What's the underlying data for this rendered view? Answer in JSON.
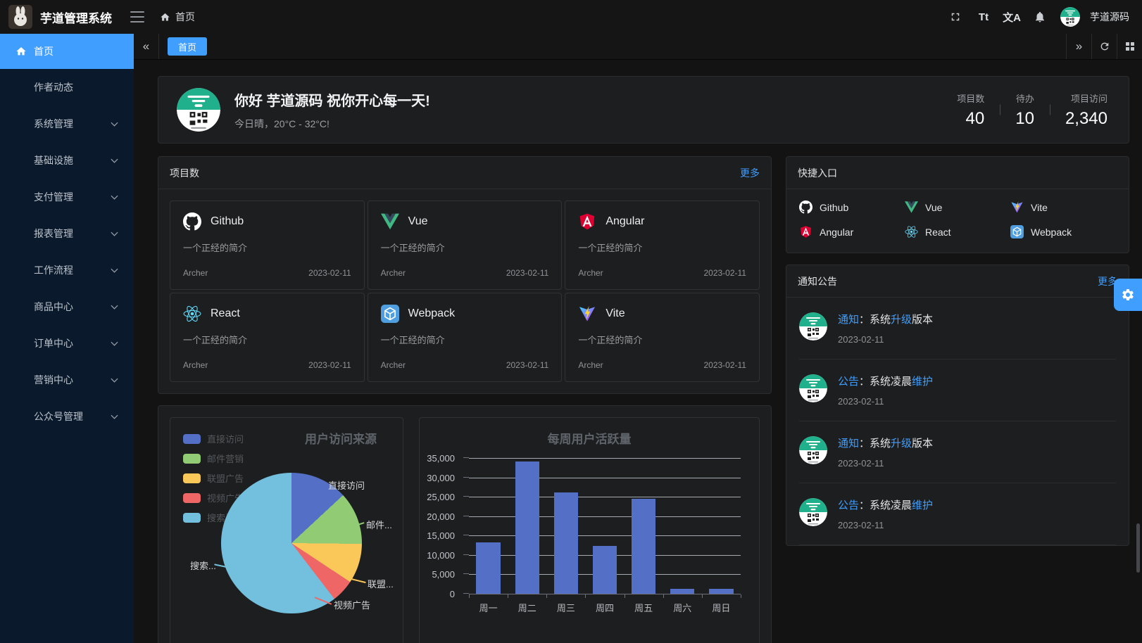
{
  "header": {
    "title": "芋道管理系统",
    "breadcrumb": "首页",
    "font_size_label": "Tt",
    "locale_label": "文A",
    "username": "芋道源码"
  },
  "tabbar": {
    "collapse_left": "«",
    "collapse_right": "»",
    "tabs": [
      {
        "label": "首页",
        "active": true
      }
    ]
  },
  "sidebar": {
    "items": [
      {
        "label": "首页",
        "icon": "home",
        "active": true,
        "chevron": false
      },
      {
        "label": "作者动态",
        "chevron": false
      },
      {
        "label": "系统管理",
        "chevron": true
      },
      {
        "label": "基础设施",
        "chevron": true
      },
      {
        "label": "支付管理",
        "chevron": true
      },
      {
        "label": "报表管理",
        "chevron": true
      },
      {
        "label": "工作流程",
        "chevron": true
      },
      {
        "label": "商品中心",
        "chevron": true
      },
      {
        "label": "订单中心",
        "chevron": true
      },
      {
        "label": "营销中心",
        "chevron": true
      },
      {
        "label": "公众号管理",
        "chevron": true
      }
    ]
  },
  "welcome": {
    "greeting": "你好 芋道源码 祝你开心每一天!",
    "weather": "今日晴，20°C - 32°C!",
    "stats": [
      {
        "label": "项目数",
        "value": "40"
      },
      {
        "label": "待办",
        "value": "10"
      },
      {
        "label": "项目访问",
        "value": "2,340"
      }
    ]
  },
  "projects": {
    "title": "项目数",
    "more": "更多",
    "cards": [
      {
        "name": "Github",
        "icon": "github",
        "desc": "一个正经的简介",
        "author": "Archer",
        "date": "2023-02-11"
      },
      {
        "name": "Vue",
        "icon": "vue",
        "desc": "一个正经的简介",
        "author": "Archer",
        "date": "2023-02-11"
      },
      {
        "name": "Angular",
        "icon": "angular",
        "desc": "一个正经的简介",
        "author": "Archer",
        "date": "2023-02-11"
      },
      {
        "name": "React",
        "icon": "react",
        "desc": "一个正经的简介",
        "author": "Archer",
        "date": "2023-02-11"
      },
      {
        "name": "Webpack",
        "icon": "webpack",
        "desc": "一个正经的简介",
        "author": "Archer",
        "date": "2023-02-11"
      },
      {
        "name": "Vite",
        "icon": "vite",
        "desc": "一个正经的简介",
        "author": "Archer",
        "date": "2023-02-11"
      }
    ]
  },
  "shortcuts": {
    "title": "快捷入口",
    "items": [
      {
        "label": "Github",
        "icon": "github"
      },
      {
        "label": "Vue",
        "icon": "vue"
      },
      {
        "label": "Vite",
        "icon": "vite"
      },
      {
        "label": "Angular",
        "icon": "angular"
      },
      {
        "label": "React",
        "icon": "react"
      },
      {
        "label": "Webpack",
        "icon": "webpack"
      }
    ]
  },
  "notices": {
    "title": "通知公告",
    "more": "更多",
    "items": [
      {
        "segments": [
          {
            "text": "通知",
            "highlight": true
          },
          {
            "text": "：系统"
          },
          {
            "text": "升级",
            "highlight": true
          },
          {
            "text": "版本"
          }
        ],
        "date": "2023-02-11"
      },
      {
        "segments": [
          {
            "text": "公告",
            "highlight": true
          },
          {
            "text": "：系统凌晨"
          },
          {
            "text": "维护",
            "highlight": true
          }
        ],
        "date": "2023-02-11"
      },
      {
        "segments": [
          {
            "text": "通知",
            "highlight": true
          },
          {
            "text": "：系统"
          },
          {
            "text": "升级",
            "highlight": true
          },
          {
            "text": "版本"
          }
        ],
        "date": "2023-02-11"
      },
      {
        "segments": [
          {
            "text": "公告",
            "highlight": true
          },
          {
            "text": "：系统凌晨"
          },
          {
            "text": "维护",
            "highlight": true
          }
        ],
        "date": "2023-02-11"
      }
    ]
  },
  "chart_data": [
    {
      "type": "pie",
      "title": "用户访问来源",
      "legend_position": "left",
      "legend": [
        "直接访问",
        "邮件营销",
        "联盟广告",
        "视频广告",
        "搜索引擎"
      ],
      "series": [
        {
          "name": "直接访问",
          "value": 335,
          "color": "#5470c6",
          "callout": "直接访问"
        },
        {
          "name": "邮件营销",
          "value": 310,
          "color": "#91cc75",
          "callout": "邮件..."
        },
        {
          "name": "联盟广告",
          "value": 234,
          "color": "#fac858",
          "callout": "联盟..."
        },
        {
          "name": "视频广告",
          "value": 135,
          "color": "#ee6666",
          "callout": "视频广告"
        },
        {
          "name": "搜索引擎",
          "value": 1548,
          "color": "#73c0de",
          "callout": "搜索..."
        }
      ]
    },
    {
      "type": "bar",
      "title": "每周用户活跃量",
      "categories": [
        "周一",
        "周二",
        "周三",
        "周四",
        "周五",
        "周六",
        "周日"
      ],
      "values": [
        13253,
        34235,
        26321,
        12340,
        24643,
        1322,
        1324
      ],
      "xlabel": "",
      "ylabel": "",
      "ylim": [
        0,
        35000
      ],
      "ytick_step": 5000,
      "grid": true,
      "bar_color": "#5470c6"
    }
  ],
  "colors": {
    "accent": "#409eff",
    "sidebar_bg": "#0a1a2c",
    "panel_bg": "#1d1e1f",
    "page_bg": "#131313"
  }
}
